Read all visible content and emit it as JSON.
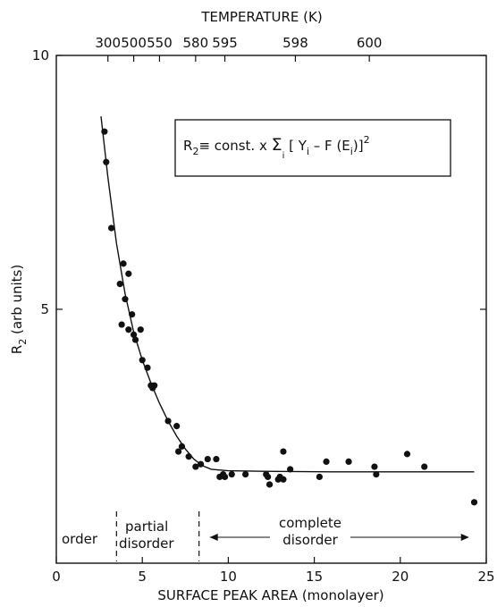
{
  "chart_data": {
    "type": "scatter",
    "title": "",
    "xlabel": "SURFACE PEAK AREA (monolayer)",
    "ylabel": "R",
    "ylabel_sub": "2",
    "ylabel_units": " (arb units)",
    "xlim": [
      0,
      25
    ],
    "ylim": [
      0,
      10
    ],
    "x_ticks": [
      0,
      5,
      10,
      15,
      20,
      25
    ],
    "y_tick_labels": [
      {
        "value": 5,
        "label": "5"
      },
      {
        "value": 10,
        "label": "10"
      }
    ],
    "top_axis": {
      "label": "TEMPERATURE (K)",
      "ticks": [
        {
          "x": 3.0,
          "label": "300"
        },
        {
          "x": 4.5,
          "label": "500"
        },
        {
          "x": 6.0,
          "label": "550"
        },
        {
          "x": 8.1,
          "label": "580"
        },
        {
          "x": 9.8,
          "label": "595"
        },
        {
          "x": 13.9,
          "label": "598"
        },
        {
          "x": 18.2,
          "label": "600"
        }
      ]
    },
    "formula": {
      "lhs": "R",
      "lhs_sub": "2",
      "body": "≡ const. x ",
      "sum": "Σ",
      "sum_sub": "i",
      "bracket": " [ Y",
      "y_sub": "i",
      "minus": " – F (E",
      "e_sub": "i",
      "close": ")]",
      "power": "2"
    },
    "regions": [
      {
        "label_lines": [
          "order"
        ],
        "x_from": 0,
        "x_to": 3.5
      },
      {
        "label_lines": [
          "partial",
          "disorder"
        ],
        "x_from": 3.5,
        "x_to": 8.3
      },
      {
        "label_lines": [
          "complete",
          "disorder"
        ],
        "x_from": 8.3,
        "x_to": 24
      }
    ],
    "region_boundaries_x": [
      3.5,
      8.3
    ],
    "series": [
      {
        "kind": "points",
        "points": [
          [
            2.8,
            8.5
          ],
          [
            2.9,
            7.9
          ],
          [
            3.2,
            6.6
          ],
          [
            3.7,
            5.5
          ],
          [
            3.9,
            5.9
          ],
          [
            4.0,
            5.2
          ],
          [
            4.2,
            5.7
          ],
          [
            3.8,
            4.7
          ],
          [
            4.2,
            4.6
          ],
          [
            4.4,
            4.9
          ],
          [
            4.5,
            4.5
          ],
          [
            4.6,
            4.4
          ],
          [
            4.9,
            4.6
          ],
          [
            5.0,
            4.0
          ],
          [
            5.3,
            3.85
          ],
          [
            5.5,
            3.5
          ],
          [
            5.6,
            3.45
          ],
          [
            5.7,
            3.5
          ],
          [
            6.5,
            2.8
          ],
          [
            7.0,
            2.7
          ],
          [
            7.1,
            2.2
          ],
          [
            7.3,
            2.3
          ],
          [
            7.7,
            2.1
          ],
          [
            8.1,
            1.9
          ],
          [
            8.4,
            1.95
          ],
          [
            8.8,
            2.05
          ],
          [
            9.3,
            2.05
          ],
          [
            9.5,
            1.7
          ],
          [
            9.7,
            1.75
          ],
          [
            9.8,
            1.7
          ],
          [
            10.2,
            1.75
          ],
          [
            11.0,
            1.75
          ],
          [
            12.2,
            1.75
          ],
          [
            12.3,
            1.7
          ],
          [
            12.4,
            1.55
          ],
          [
            12.9,
            1.65
          ],
          [
            13.0,
            1.7
          ],
          [
            13.2,
            1.65
          ],
          [
            13.2,
            2.2
          ],
          [
            13.6,
            1.85
          ],
          [
            15.3,
            1.7
          ],
          [
            15.7,
            2.0
          ],
          [
            17.0,
            2.0
          ],
          [
            18.5,
            1.9
          ],
          [
            18.6,
            1.75
          ],
          [
            20.4,
            2.15
          ],
          [
            21.4,
            1.9
          ],
          [
            24.3,
            1.2
          ]
        ]
      },
      {
        "kind": "fit-curve",
        "points": [
          [
            2.6,
            8.8
          ],
          [
            3.0,
            7.6
          ],
          [
            3.5,
            6.3
          ],
          [
            4.0,
            5.3
          ],
          [
            4.5,
            4.55
          ],
          [
            5.0,
            4.0
          ],
          [
            5.5,
            3.55
          ],
          [
            6.0,
            3.15
          ],
          [
            6.5,
            2.8
          ],
          [
            7.0,
            2.5
          ],
          [
            7.5,
            2.25
          ],
          [
            8.0,
            2.05
          ],
          [
            8.5,
            1.92
          ],
          [
            9.0,
            1.85
          ],
          [
            10.0,
            1.82
          ],
          [
            12.0,
            1.81
          ],
          [
            16.0,
            1.8
          ],
          [
            20.0,
            1.8
          ],
          [
            24.3,
            1.8
          ]
        ]
      }
    ]
  }
}
